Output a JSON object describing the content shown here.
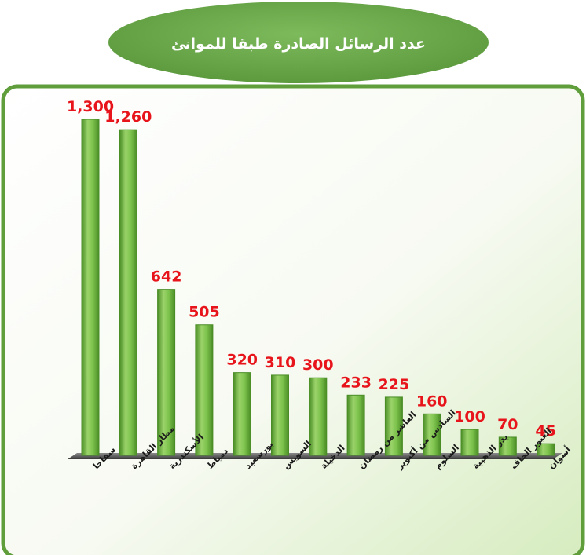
{
  "chart_data": {
    "type": "bar",
    "title": "عدد الرسائل الصادرة طبقا للموانئ",
    "categories": [
      "سفاجا",
      "مطار القاهرة",
      "الأسكندرية",
      "دمياط",
      "بورسعيد",
      "السويس",
      "الدخيلة",
      "العاشر من رمضان",
      "السادس من أكتوبر",
      "السلوم",
      "بدر الذهبية",
      "العبور الجاف",
      "أسوان"
    ],
    "values": [
      1300,
      1260,
      642,
      505,
      320,
      310,
      300,
      233,
      225,
      160,
      100,
      70,
      45
    ],
    "value_labels": [
      "1,300",
      "1,260",
      "642",
      "505",
      "320",
      "310",
      "300",
      "233",
      "225",
      "160",
      "100",
      "70",
      "45"
    ],
    "ylim": [
      0,
      1300
    ],
    "grid": false,
    "legend": "none",
    "colors": {
      "bar": "#6fb840",
      "bar_light": "#9bd36a",
      "bar_dark": "#4a8d26",
      "value_label": "#e8141b",
      "title_fill": "#6aa84f",
      "title_text": "#ffffff",
      "frame": "#5f9e3b",
      "floor": "#555555",
      "category_label": "#1a1a1a"
    }
  }
}
